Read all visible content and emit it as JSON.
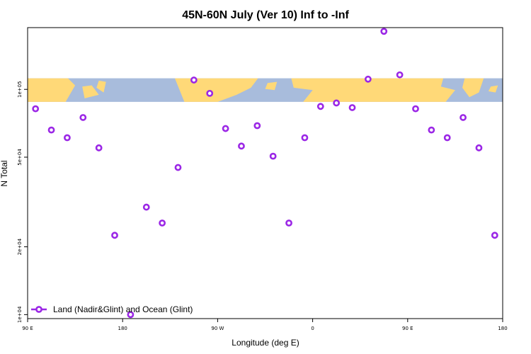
{
  "chart_data": {
    "type": "scatter",
    "title": "45N-60N July (Ver 10)   Inf to -Inf",
    "xlabel": "Longitude (deg E)",
    "ylabel": "N Total",
    "x_axis": {
      "range": [
        90,
        450
      ],
      "ticks": [
        {
          "value": 90,
          "label": "90 E"
        },
        {
          "value": 162,
          "label": "180"
        },
        {
          "value": 234,
          "label": "90 W"
        },
        {
          "value": 306,
          "label": "0"
        },
        {
          "value": 378,
          "label": "90 E"
        },
        {
          "value": 450,
          "label": "180"
        }
      ]
    },
    "y_axis": {
      "scale": "log",
      "range": [
        9600,
        188000
      ],
      "ticks": [
        {
          "value": 10000,
          "label": "1e+04"
        },
        {
          "value": 20000,
          "label": "2e+04"
        },
        {
          "value": 50000,
          "label": "5e+04"
        },
        {
          "value": 100000,
          "label": "1e+05"
        }
      ]
    },
    "grid": false,
    "legend_position": "bottom-left",
    "map_band": {
      "y_from": 88000,
      "y_to": 112000,
      "land_color": "#ffd978",
      "ocean_color": "#a8bcdc"
    },
    "series": [
      {
        "name": "Land (Nadir&Glint) and Ocean (Glint)",
        "color": "#9b27e6",
        "points": [
          {
            "x": 96,
            "y": 82000
          },
          {
            "x": 108,
            "y": 66000
          },
          {
            "x": 120,
            "y": 61000
          },
          {
            "x": 132,
            "y": 75000
          },
          {
            "x": 144,
            "y": 55000
          },
          {
            "x": 156,
            "y": 22500
          },
          {
            "x": 168,
            "y": 10000
          },
          {
            "x": 180,
            "y": 30000
          },
          {
            "x": 192,
            "y": 25500
          },
          {
            "x": 204,
            "y": 45000
          },
          {
            "x": 216,
            "y": 110000
          },
          {
            "x": 228,
            "y": 96000
          },
          {
            "x": 240,
            "y": 67000
          },
          {
            "x": 252,
            "y": 56000
          },
          {
            "x": 264,
            "y": 69000
          },
          {
            "x": 276,
            "y": 50500
          },
          {
            "x": 288,
            "y": 25500
          },
          {
            "x": 300,
            "y": 61000
          },
          {
            "x": 312,
            "y": 84000
          },
          {
            "x": 324,
            "y": 87000
          },
          {
            "x": 336,
            "y": 83000
          },
          {
            "x": 348,
            "y": 111000
          },
          {
            "x": 360,
            "y": 181000
          },
          {
            "x": 372,
            "y": 116000
          },
          {
            "x": 384,
            "y": 82000
          },
          {
            "x": 396,
            "y": 66000
          },
          {
            "x": 408,
            "y": 61000
          },
          {
            "x": 420,
            "y": 75000
          },
          {
            "x": 432,
            "y": 55000
          },
          {
            "x": 444,
            "y": 22500
          }
        ]
      }
    ]
  }
}
